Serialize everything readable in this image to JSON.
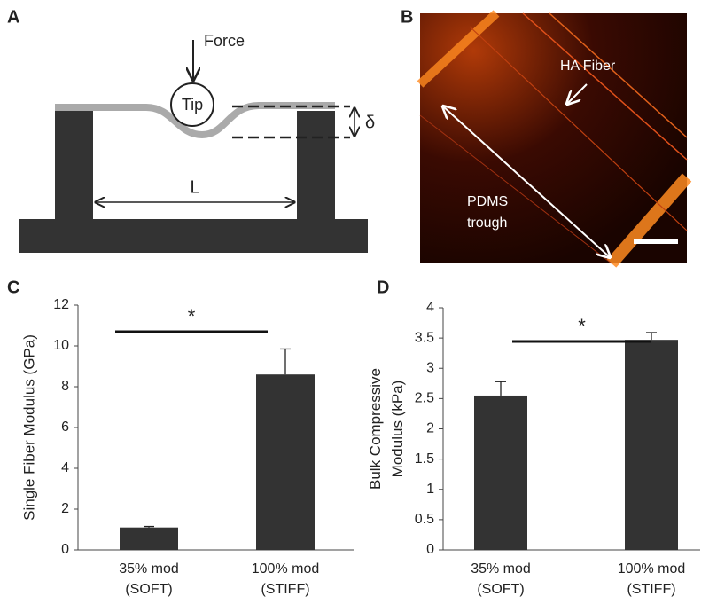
{
  "panel_labels": [
    "A",
    "B",
    "C",
    "D"
  ],
  "diagram": {
    "force": "Force",
    "tip": "Tip",
    "deflection": "δ",
    "length": "L"
  },
  "micrograph": {
    "fiber": "HA Fiber",
    "trough": [
      "PDMS",
      "trough"
    ]
  },
  "chart_data": [
    {
      "type": "bar",
      "ylabel": "Single Fiber Modulus (GPa)",
      "categories": [
        "35% mod\n(SOFT)",
        "100% mod\n(STIFF)"
      ],
      "values": [
        1.1,
        8.6
      ],
      "errors": [
        0.05,
        1.25
      ],
      "color": "#333333",
      "ylim": [
        0,
        12
      ],
      "yticks": [
        0,
        2,
        4,
        6,
        8,
        10,
        12
      ],
      "annotation": "*"
    },
    {
      "type": "bar",
      "ylabel": "Bulk Compressive\nModulus (kPa)",
      "categories": [
        "35% mod\n(SOFT)",
        "100% mod\n(STIFF)"
      ],
      "values": [
        2.55,
        3.47
      ],
      "errors": [
        0.23,
        0.12
      ],
      "color": "#333333",
      "ylim": [
        0,
        4
      ],
      "yticks": [
        0,
        0.5,
        1,
        1.5,
        2,
        2.5,
        3,
        3.5,
        4
      ],
      "annotation": "*"
    }
  ]
}
